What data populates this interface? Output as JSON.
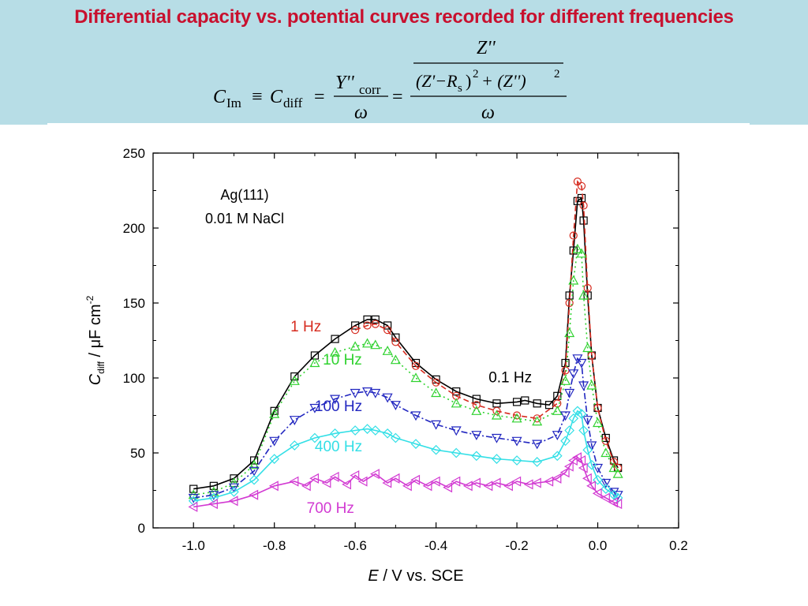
{
  "slide": {
    "title": "Differential capacity vs. potential curves recorded for different frequencies"
  },
  "equation": {
    "lhs_symbol": "C",
    "lhs_sub": "Im",
    "equiv": "≡",
    "mid_symbol": "C",
    "mid_sub": "diff",
    "equals": "=",
    "num_symbol": "Y''",
    "num_sub": "corr",
    "den_symbol": "ω",
    "inner_num": "Z''",
    "inner_den_a": "(Z'−R",
    "inner_den_a_sub": "s",
    "inner_den_a_close": ")",
    "inner_den_exp": "2",
    "inner_den_plus": " + (Z'')",
    "inner_den_exp2": "2",
    "outer_den": "ω"
  },
  "chart_data": {
    "type": "scatter",
    "xlabel_italic": "E",
    "xlabel_rest": " / V vs. SCE",
    "ylabel_italic": "C",
    "ylabel_sub": "diff",
    "ylabel_rest": " / μF cm",
    "ylabel_sup": "-2",
    "xlim": [
      -1.1,
      0.2
    ],
    "ylim": [
      0,
      250
    ],
    "xticks": [
      -1.0,
      -0.8,
      -0.6,
      -0.4,
      -0.2,
      0.0,
      0.2
    ],
    "xtick_labels": [
      "-1.0",
      "-0.8",
      "-0.6",
      "-0.4",
      "-0.2",
      "0.0",
      "0.2"
    ],
    "yticks": [
      0,
      50,
      100,
      150,
      200,
      250
    ],
    "ytick_labels": [
      "0",
      "50",
      "100",
      "150",
      "200",
      "250"
    ],
    "grid": false,
    "annotation_lines": [
      "Ag(111)",
      "0.01 M NaCl"
    ],
    "series": [
      {
        "name": "0.1 Hz",
        "color": "#000000",
        "marker": "square",
        "line": "solid",
        "points": [
          [
            -1.0,
            26
          ],
          [
            -0.95,
            28
          ],
          [
            -0.9,
            33
          ],
          [
            -0.85,
            45
          ],
          [
            -0.8,
            78
          ],
          [
            -0.75,
            101
          ],
          [
            -0.7,
            115
          ],
          [
            -0.65,
            126
          ],
          [
            -0.6,
            135
          ],
          [
            -0.57,
            139
          ],
          [
            -0.55,
            139
          ],
          [
            -0.52,
            135
          ],
          [
            -0.5,
            127
          ],
          [
            -0.45,
            110
          ],
          [
            -0.4,
            99
          ],
          [
            -0.35,
            91
          ],
          [
            -0.3,
            86
          ],
          [
            -0.25,
            83
          ],
          [
            -0.2,
            84
          ],
          [
            -0.18,
            85
          ],
          [
            -0.15,
            83
          ],
          [
            -0.12,
            82
          ],
          [
            -0.1,
            88
          ],
          [
            -0.08,
            110
          ],
          [
            -0.07,
            155
          ],
          [
            -0.06,
            185
          ],
          [
            -0.05,
            218
          ],
          [
            -0.04,
            220
          ],
          [
            -0.035,
            205
          ],
          [
            -0.025,
            155
          ],
          [
            -0.015,
            115
          ],
          [
            0.0,
            80
          ],
          [
            0.02,
            60
          ],
          [
            0.04,
            45
          ],
          [
            0.05,
            40
          ]
        ]
      },
      {
        "name": "1 Hz",
        "color": "#d62b1f",
        "marker": "circle",
        "line": "dash",
        "points": [
          [
            -0.6,
            132
          ],
          [
            -0.57,
            135
          ],
          [
            -0.55,
            136
          ],
          [
            -0.52,
            132
          ],
          [
            -0.5,
            124
          ],
          [
            -0.45,
            108
          ],
          [
            -0.4,
            97
          ],
          [
            -0.35,
            88
          ],
          [
            -0.3,
            82
          ],
          [
            -0.25,
            78
          ],
          [
            -0.2,
            75
          ],
          [
            -0.15,
            73
          ],
          [
            -0.1,
            83
          ],
          [
            -0.08,
            105
          ],
          [
            -0.07,
            150
          ],
          [
            -0.06,
            195
          ],
          [
            -0.05,
            231
          ],
          [
            -0.04,
            228
          ],
          [
            -0.035,
            215
          ],
          [
            -0.025,
            160
          ],
          [
            -0.015,
            115
          ],
          [
            0.0,
            80
          ],
          [
            0.02,
            58
          ],
          [
            0.04,
            44
          ],
          [
            0.05,
            40
          ]
        ]
      },
      {
        "name": "10 Hz",
        "color": "#2fd22f",
        "marker": "triangle-up",
        "line": "dot",
        "points": [
          [
            -1.0,
            22
          ],
          [
            -0.95,
            24
          ],
          [
            -0.9,
            30
          ],
          [
            -0.85,
            42
          ],
          [
            -0.8,
            76
          ],
          [
            -0.75,
            98
          ],
          [
            -0.7,
            110
          ],
          [
            -0.65,
            117
          ],
          [
            -0.6,
            121
          ],
          [
            -0.57,
            123
          ],
          [
            -0.55,
            122
          ],
          [
            -0.52,
            118
          ],
          [
            -0.5,
            112
          ],
          [
            -0.45,
            100
          ],
          [
            -0.4,
            90
          ],
          [
            -0.35,
            83
          ],
          [
            -0.3,
            78
          ],
          [
            -0.25,
            75
          ],
          [
            -0.2,
            73
          ],
          [
            -0.15,
            71
          ],
          [
            -0.1,
            78
          ],
          [
            -0.08,
            98
          ],
          [
            -0.07,
            130
          ],
          [
            -0.06,
            165
          ],
          [
            -0.05,
            186
          ],
          [
            -0.04,
            183
          ],
          [
            -0.035,
            155
          ],
          [
            -0.025,
            120
          ],
          [
            -0.015,
            95
          ],
          [
            0.0,
            70
          ],
          [
            0.02,
            50
          ],
          [
            0.04,
            40
          ],
          [
            0.05,
            36
          ]
        ]
      },
      {
        "name": "100 Hz",
        "color": "#2227c0",
        "marker": "triangle-down",
        "line": "dashdot",
        "points": [
          [
            -1.0,
            20
          ],
          [
            -0.95,
            22
          ],
          [
            -0.9,
            27
          ],
          [
            -0.85,
            38
          ],
          [
            -0.8,
            58
          ],
          [
            -0.75,
            72
          ],
          [
            -0.7,
            80
          ],
          [
            -0.65,
            86
          ],
          [
            -0.6,
            90
          ],
          [
            -0.57,
            91
          ],
          [
            -0.55,
            90
          ],
          [
            -0.52,
            87
          ],
          [
            -0.5,
            82
          ],
          [
            -0.45,
            75
          ],
          [
            -0.4,
            69
          ],
          [
            -0.35,
            65
          ],
          [
            -0.3,
            62
          ],
          [
            -0.25,
            60
          ],
          [
            -0.2,
            58
          ],
          [
            -0.15,
            56
          ],
          [
            -0.1,
            62
          ],
          [
            -0.08,
            75
          ],
          [
            -0.07,
            90
          ],
          [
            -0.06,
            103
          ],
          [
            -0.05,
            113
          ],
          [
            -0.04,
            110
          ],
          [
            -0.035,
            95
          ],
          [
            -0.025,
            72
          ],
          [
            -0.015,
            55
          ],
          [
            0.0,
            40
          ],
          [
            0.02,
            30
          ],
          [
            0.04,
            24
          ],
          [
            0.05,
            22
          ]
        ]
      },
      {
        "name": "400 Hz",
        "color": "#33dfe6",
        "marker": "diamond",
        "line": "solid",
        "points": [
          [
            -1.0,
            18
          ],
          [
            -0.95,
            20
          ],
          [
            -0.9,
            24
          ],
          [
            -0.85,
            32
          ],
          [
            -0.8,
            46
          ],
          [
            -0.75,
            55
          ],
          [
            -0.7,
            60
          ],
          [
            -0.65,
            63
          ],
          [
            -0.6,
            65
          ],
          [
            -0.57,
            66
          ],
          [
            -0.55,
            65
          ],
          [
            -0.52,
            63
          ],
          [
            -0.5,
            60
          ],
          [
            -0.45,
            56
          ],
          [
            -0.4,
            52
          ],
          [
            -0.35,
            50
          ],
          [
            -0.3,
            48
          ],
          [
            -0.25,
            46
          ],
          [
            -0.2,
            45
          ],
          [
            -0.15,
            44
          ],
          [
            -0.1,
            48
          ],
          [
            -0.08,
            58
          ],
          [
            -0.07,
            65
          ],
          [
            -0.06,
            73
          ],
          [
            -0.05,
            78
          ],
          [
            -0.04,
            76
          ],
          [
            -0.035,
            65
          ],
          [
            -0.025,
            52
          ],
          [
            -0.015,
            42
          ],
          [
            0.0,
            32
          ],
          [
            0.02,
            26
          ],
          [
            0.04,
            22
          ],
          [
            0.05,
            20
          ]
        ]
      },
      {
        "name": "700 Hz",
        "color": "#d23ad2",
        "marker": "triangle-left",
        "line": "solid",
        "points": [
          [
            -1.0,
            14
          ],
          [
            -0.95,
            16
          ],
          [
            -0.9,
            18
          ],
          [
            -0.85,
            22
          ],
          [
            -0.8,
            28
          ],
          [
            -0.75,
            31
          ],
          [
            -0.72,
            28
          ],
          [
            -0.7,
            33
          ],
          [
            -0.67,
            30
          ],
          [
            -0.65,
            34
          ],
          [
            -0.62,
            29
          ],
          [
            -0.6,
            35
          ],
          [
            -0.58,
            31
          ],
          [
            -0.55,
            36
          ],
          [
            -0.52,
            30
          ],
          [
            -0.5,
            33
          ],
          [
            -0.47,
            28
          ],
          [
            -0.45,
            32
          ],
          [
            -0.42,
            28
          ],
          [
            -0.4,
            31
          ],
          [
            -0.37,
            27
          ],
          [
            -0.35,
            31
          ],
          [
            -0.32,
            28
          ],
          [
            -0.3,
            30
          ],
          [
            -0.27,
            28
          ],
          [
            -0.25,
            30
          ],
          [
            -0.22,
            28
          ],
          [
            -0.2,
            31
          ],
          [
            -0.17,
            29
          ],
          [
            -0.15,
            30
          ],
          [
            -0.12,
            31
          ],
          [
            -0.1,
            33
          ],
          [
            -0.08,
            37
          ],
          [
            -0.07,
            41
          ],
          [
            -0.06,
            45
          ],
          [
            -0.05,
            47
          ],
          [
            -0.04,
            45
          ],
          [
            -0.035,
            40
          ],
          [
            -0.025,
            33
          ],
          [
            -0.015,
            28
          ],
          [
            0.0,
            23
          ],
          [
            0.02,
            20
          ],
          [
            0.04,
            17
          ],
          [
            0.05,
            16
          ]
        ]
      }
    ],
    "series_labels": [
      {
        "text": "1 Hz",
        "color": "#d62b1f",
        "x": -0.76,
        "y": 131,
        "anchor": "start"
      },
      {
        "text": "10 Hz",
        "color": "#2fd22f",
        "x": -0.68,
        "y": 109,
        "anchor": "start"
      },
      {
        "text": "0.1 Hz",
        "color": "#000000",
        "x": -0.27,
        "y": 97,
        "anchor": "start"
      },
      {
        "text": "100 Hz",
        "color": "#2227c0",
        "x": -0.7,
        "y": 78,
        "anchor": "start"
      },
      {
        "text": "400 Hz",
        "color": "#33dfe6",
        "x": -0.7,
        "y": 51,
        "anchor": "start"
      },
      {
        "text": "700 Hz",
        "color": "#d23ad2",
        "x": -0.72,
        "y": 10,
        "anchor": "start"
      }
    ]
  }
}
